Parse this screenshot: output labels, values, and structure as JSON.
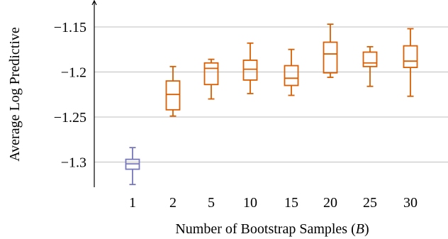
{
  "chart_data": {
    "type": "box",
    "title": "",
    "xlabel_main": "Number of Bootstrap Samples (",
    "xlabel_var": "B",
    "xlabel_end": ")",
    "ylabel": "Average Log Predictive",
    "categories": [
      "1",
      "2",
      "5",
      "10",
      "15",
      "20",
      "25",
      "30"
    ],
    "yticks": [
      -1.15,
      -1.2,
      -1.25,
      -1.3
    ],
    "ytick_labels": [
      "−1.15",
      "−1.2",
      "−1.25",
      "−1.3"
    ],
    "ylim": [
      -1.328,
      -1.128
    ],
    "grid": "horizontal",
    "colors": {
      "first": "#7777bb",
      "rest": "#d95f02",
      "grid": "#bfbfbf",
      "axis": "#000000"
    },
    "boxes": [
      {
        "category": "1",
        "whisker_low": -1.325,
        "q1": -1.308,
        "median": -1.302,
        "q3": -1.297,
        "whisker_high": -1.284,
        "color": "first"
      },
      {
        "category": "2",
        "whisker_low": -1.249,
        "q1": -1.242,
        "median": -1.225,
        "q3": -1.21,
        "whisker_high": -1.194,
        "color": "rest"
      },
      {
        "category": "5",
        "whisker_low": -1.23,
        "q1": -1.214,
        "median": -1.196,
        "q3": -1.19,
        "whisker_high": -1.186,
        "color": "rest"
      },
      {
        "category": "10",
        "whisker_low": -1.224,
        "q1": -1.209,
        "median": -1.197,
        "q3": -1.187,
        "whisker_high": -1.168,
        "color": "rest"
      },
      {
        "category": "15",
        "whisker_low": -1.226,
        "q1": -1.215,
        "median": -1.207,
        "q3": -1.193,
        "whisker_high": -1.175,
        "color": "rest"
      },
      {
        "category": "20",
        "whisker_low": -1.206,
        "q1": -1.201,
        "median": -1.18,
        "q3": -1.167,
        "whisker_high": -1.147,
        "color": "rest"
      },
      {
        "category": "25",
        "whisker_low": -1.216,
        "q1": -1.194,
        "median": -1.19,
        "q3": -1.178,
        "whisker_high": -1.172,
        "color": "rest"
      },
      {
        "category": "30",
        "whisker_low": -1.227,
        "q1": -1.195,
        "median": -1.188,
        "q3": -1.171,
        "whisker_high": -1.152,
        "color": "rest"
      }
    ]
  }
}
